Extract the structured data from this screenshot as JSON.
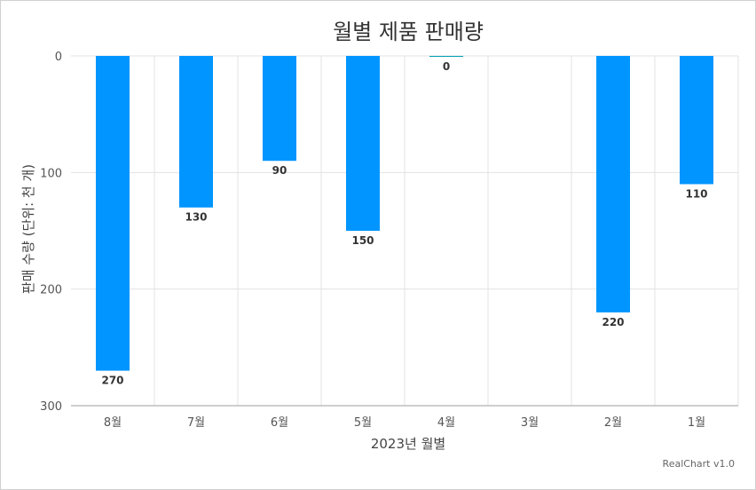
{
  "chart_data": {
    "type": "bar",
    "title": "월별 제품 판매량",
    "xlabel": "2023년 월별",
    "ylabel": "판매 수량 (단위: 천 개)",
    "categories": [
      "8월",
      "7월",
      "6월",
      "5월",
      "4월",
      "3월",
      "2월",
      "1월"
    ],
    "values": [
      270,
      130,
      90,
      150,
      0,
      null,
      220,
      110
    ],
    "data_labels": [
      "270",
      "130",
      "90",
      "150",
      "0",
      "",
      "220",
      "110"
    ],
    "ylim": [
      0,
      300
    ],
    "y_reversed": true,
    "yticks": [
      0,
      100,
      200,
      300
    ],
    "grid": true,
    "bar_color": "#0095ff",
    "zero_bar_color": "#00a0b0"
  },
  "credit": "RealChart v1.0"
}
